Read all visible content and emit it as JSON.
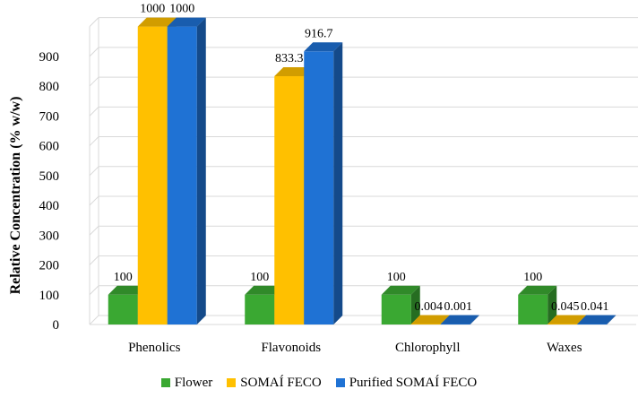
{
  "chart_data": {
    "type": "bar",
    "style": "3d-clustered",
    "title": "",
    "xlabel": "",
    "ylabel": "Relative Concentration (% w/w)",
    "ylim": [
      0,
      1000
    ],
    "yticks": [
      0,
      100,
      200,
      300,
      400,
      500,
      600,
      700,
      800,
      900
    ],
    "grid": true,
    "legend_position": "bottom",
    "categories": [
      "Phenolics",
      "Flavonoids",
      "Chlorophyll",
      "Waxes"
    ],
    "series": [
      {
        "name": "Flower",
        "color": "#3aa832",
        "values": [
          100,
          100,
          100,
          100
        ],
        "labels": [
          "100",
          "100",
          "100",
          "100"
        ]
      },
      {
        "name": "SOMAÍ FECO",
        "color": "#ffc000",
        "values": [
          1000,
          833.3,
          0.004,
          0.045
        ],
        "labels": [
          "1000",
          "833.3",
          "0.004",
          "0.045"
        ]
      },
      {
        "name": "Purified SOMAÍ FECO",
        "color": "#1f72d4",
        "values": [
          1000,
          916.7,
          0.001,
          0.041
        ],
        "labels": [
          "1000",
          "916.7",
          "0.001",
          "0.041"
        ]
      }
    ]
  }
}
